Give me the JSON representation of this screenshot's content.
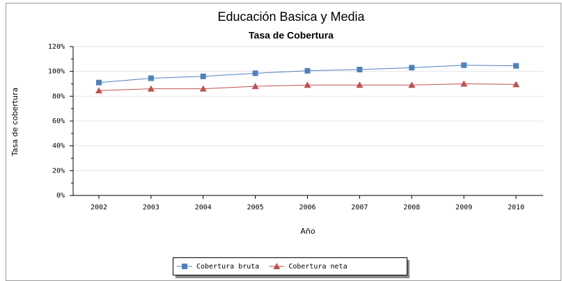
{
  "chart_data": {
    "type": "line",
    "title": "Educación Basica y Media",
    "subtitle": "Tasa de Cobertura",
    "y_label": "Tasa de cobertura",
    "x_label": "Año",
    "categories": [
      "2002",
      "2003",
      "2004",
      "2005",
      "2006",
      "2007",
      "2008",
      "2009",
      "2010"
    ],
    "series": [
      {
        "name": "Cobertura bruta",
        "color": "#4f81bd",
        "marker": "square",
        "values": [
          91,
          94.5,
          96,
          98.5,
          100.5,
          101.5,
          103,
          105,
          104.5
        ]
      },
      {
        "name": "Cobertura neta",
        "color": "#c0504d",
        "marker": "triangle",
        "values": [
          84.5,
          86,
          86,
          88,
          89,
          89,
          89,
          90,
          89.5
        ]
      }
    ],
    "ylim": [
      0,
      120
    ],
    "yticks": [
      {
        "value": 0,
        "label": "0%"
      },
      {
        "value": 20,
        "label": "20%"
      },
      {
        "value": 40,
        "label": "40%"
      },
      {
        "value": 60,
        "label": "60%"
      },
      {
        "value": 80,
        "label": "80%"
      },
      {
        "value": 100,
        "label": "100%"
      },
      {
        "value": 120,
        "label": "120%"
      }
    ],
    "grid": true,
    "legend": "bottom"
  }
}
